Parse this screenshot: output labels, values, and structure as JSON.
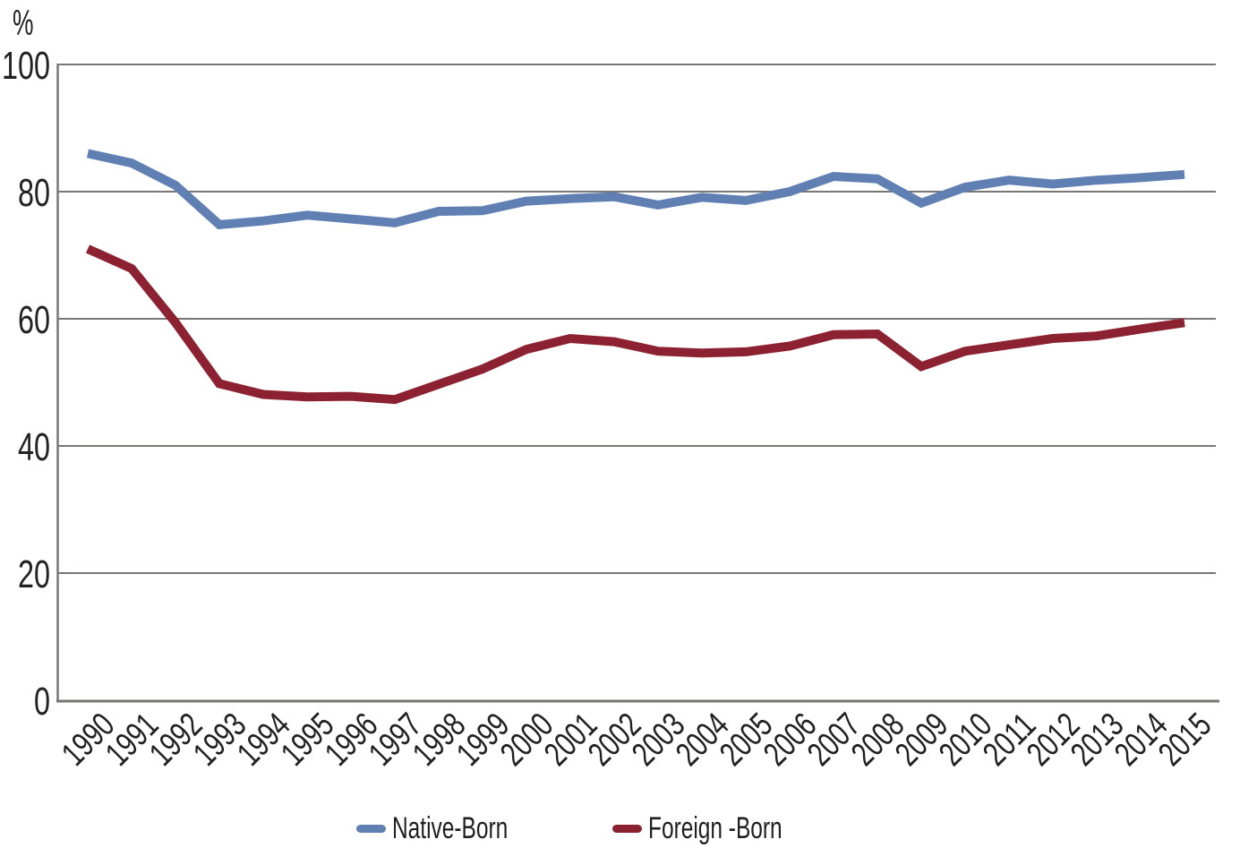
{
  "chart_data": {
    "type": "line",
    "title": "",
    "xlabel": "",
    "ylabel": "%",
    "ylim": [
      0,
      100
    ],
    "y_ticks": [
      0,
      20,
      40,
      60,
      80,
      100
    ],
    "grid": "horizontal",
    "legend_position": "bottom",
    "axis_color": "#7b7676",
    "text_color": "#212121",
    "categories": [
      "1990",
      "1991",
      "1992",
      "1993",
      "1994",
      "1995",
      "1996",
      "1997",
      "1998",
      "1999",
      "2000",
      "2001",
      "2002",
      "2003",
      "2004",
      "2005",
      "2006",
      "2007",
      "2008",
      "2009",
      "2010",
      "2011",
      "2012",
      "2013",
      "2014",
      "2015"
    ],
    "series": [
      {
        "name": "Native-Born",
        "color": "#6080b4",
        "values": [
          86.0,
          84.5,
          81.0,
          74.8,
          75.4,
          76.3,
          75.7,
          75.1,
          76.9,
          77.0,
          78.5,
          78.9,
          79.2,
          77.9,
          79.1,
          78.6,
          80.0,
          82.4,
          82.0,
          78.2,
          80.7,
          81.8,
          81.2,
          81.8,
          82.2,
          82.7
        ]
      },
      {
        "name": "Foreign -Born",
        "color": "#8c2231",
        "values": [
          71.0,
          67.9,
          59.4,
          49.8,
          48.1,
          47.7,
          47.8,
          47.3,
          49.7,
          52.1,
          55.2,
          56.9,
          56.4,
          54.9,
          54.6,
          54.8,
          55.7,
          57.5,
          57.6,
          52.5,
          54.9,
          55.9,
          56.9,
          57.3,
          58.4,
          59.4
        ]
      }
    ]
  }
}
